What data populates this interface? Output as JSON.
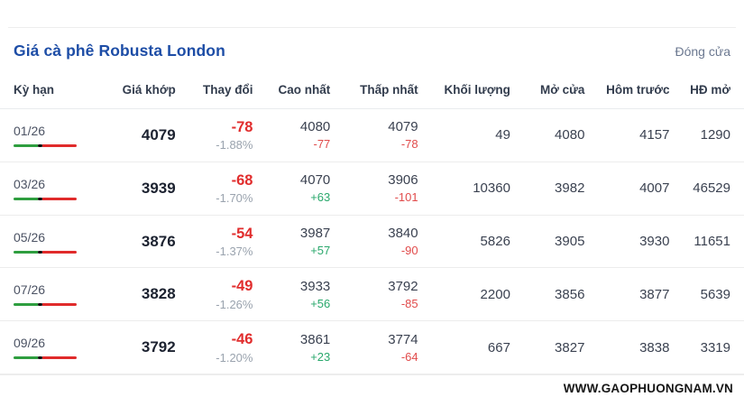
{
  "page": {
    "title": "Giá cà phê Robusta London",
    "close_label": "Đóng cửa",
    "watermark": "WWW.GAOPHUONGNAM.VN"
  },
  "colors": {
    "title_blue": "#1d4da6",
    "negative_red": "#e12d2d",
    "delta_red": "#e14b4b",
    "positive_green": "#2aa86c",
    "muted_gray": "#9aa3ae",
    "bar_green": "#2e9e3f",
    "bar_red": "#e02b2b"
  },
  "table": {
    "columns": [
      "Kỳ hạn",
      "Giá khớp",
      "Thay đổi",
      "Cao nhất",
      "Thấp nhất",
      "Khối lượng",
      "Mở cửa",
      "Hôm trước",
      "HĐ mở"
    ],
    "rows": [
      {
        "term": "01/26",
        "matched_price": "4079",
        "change": "-78",
        "change_pct": "-1.88%",
        "high": "4080",
        "high_delta": "-77",
        "low": "4079",
        "low_delta": "-78",
        "volume": "49",
        "open": "4080",
        "prev": "4157",
        "open_interest": "1290"
      },
      {
        "term": "03/26",
        "matched_price": "3939",
        "change": "-68",
        "change_pct": "-1.70%",
        "high": "4070",
        "high_delta": "+63",
        "low": "3906",
        "low_delta": "-101",
        "volume": "10360",
        "open": "3982",
        "prev": "4007",
        "open_interest": "46529"
      },
      {
        "term": "05/26",
        "matched_price": "3876",
        "change": "-54",
        "change_pct": "-1.37%",
        "high": "3987",
        "high_delta": "+57",
        "low": "3840",
        "low_delta": "-90",
        "volume": "5826",
        "open": "3905",
        "prev": "3930",
        "open_interest": "11651"
      },
      {
        "term": "07/26",
        "matched_price": "3828",
        "change": "-49",
        "change_pct": "-1.26%",
        "high": "3933",
        "high_delta": "+56",
        "low": "3792",
        "low_delta": "-85",
        "volume": "2200",
        "open": "3856",
        "prev": "3877",
        "open_interest": "5639"
      },
      {
        "term": "09/26",
        "matched_price": "3792",
        "change": "-46",
        "change_pct": "-1.20%",
        "high": "3861",
        "high_delta": "+23",
        "low": "3774",
        "low_delta": "-64",
        "volume": "667",
        "open": "3827",
        "prev": "3838",
        "open_interest": "3319"
      }
    ]
  }
}
